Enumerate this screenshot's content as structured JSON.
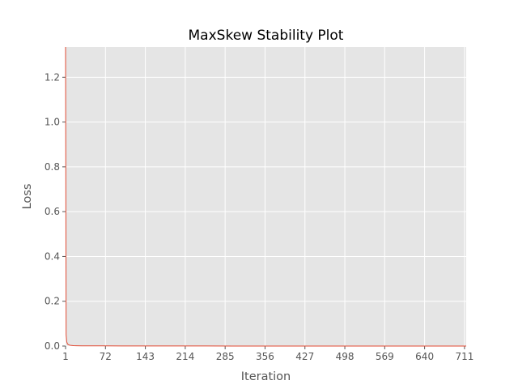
{
  "chart_data": {
    "type": "line",
    "title": "MaxSkew Stability Plot",
    "xlabel": "Iteration",
    "ylabel": "Loss",
    "xlim": [
      1,
      714
    ],
    "ylim": [
      0,
      1.335
    ],
    "xticks": [
      1,
      72,
      143,
      214,
      285,
      356,
      427,
      498,
      569,
      640,
      711
    ],
    "yticks": [
      0.0,
      0.2,
      0.4,
      0.6,
      0.8,
      1.0,
      1.2
    ],
    "ytick_labels": [
      "0.0",
      "0.2",
      "0.4",
      "0.6",
      "0.8",
      "1.0",
      "1.2"
    ],
    "grid": true,
    "legend": "none",
    "colors": {
      "plot_background": "#e5e5e5",
      "grid": "#ffffff",
      "series": "#e24a33"
    },
    "series": [
      {
        "x": [
          1,
          2,
          3,
          4,
          5,
          6,
          8,
          10,
          15,
          20,
          30,
          50,
          100,
          200,
          300,
          400,
          500,
          600,
          700,
          714
        ],
        "values": [
          1.335,
          0.05,
          0.02,
          0.012,
          0.008,
          0.006,
          0.004,
          0.003,
          0.002,
          0.0015,
          0.001,
          0.0008,
          0.0005,
          0.0003,
          0.0002,
          0.0002,
          0.0001,
          0.0001,
          0.0001,
          0.0001
        ]
      }
    ]
  }
}
